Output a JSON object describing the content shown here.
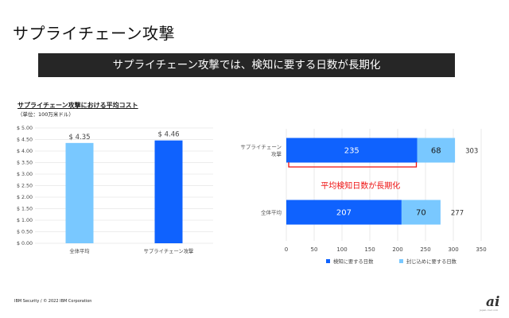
{
  "slide_title": "サプライチェーン攻撃",
  "banner": "サプライチェーン攻撃では、検知に要する日数が長期化",
  "footer": "IBM Security / © 2022 IBM Corporation",
  "logo": {
    "mark": "ai",
    "caption": "japan.cnet.com"
  },
  "colors": {
    "light_blue": "#79c8ff",
    "dark_blue": "#0f62fe",
    "highlight_red": "#ee1111",
    "banner_bg": "#262626"
  },
  "chart_data": [
    {
      "type": "bar",
      "title": "サプライチェーン攻撃における平均コスト",
      "subtitle": "（単位：100万米ドル）",
      "categories": [
        "全体平均",
        "サプライチェーン攻撃"
      ],
      "values": [
        4.35,
        4.46
      ],
      "value_labels": [
        "$ 4.35",
        "$ 4.46"
      ],
      "bar_colors": [
        "#79c8ff",
        "#0f62fe"
      ],
      "ylim": [
        0,
        5
      ],
      "yticks": [
        "$ 0.00",
        "$ 0.50",
        "$ 1.00",
        "$ 1.50",
        "$ 2.00",
        "$ 2.50",
        "$ 3.00",
        "$ 3.50",
        "$ 4.00",
        "$ 4.50",
        "$ 5.00"
      ],
      "grid": true
    },
    {
      "type": "bar",
      "orientation": "horizontal",
      "stacked": true,
      "categories": [
        [
          "サプライチェーン",
          "攻撃"
        ],
        [
          "全体平均"
        ]
      ],
      "series": [
        {
          "name": "検知に要する日数",
          "values": [
            235,
            207
          ],
          "color": "#0f62fe"
        },
        {
          "name": "封じ込めに要する日数",
          "values": [
            68,
            70
          ],
          "color": "#79c8ff"
        }
      ],
      "totals": [
        303,
        277
      ],
      "xlim": [
        0,
        350
      ],
      "xticks": [
        "0",
        "50",
        "100",
        "150",
        "200",
        "250",
        "300",
        "350"
      ],
      "annotation": "平均検知日数が長期化",
      "legend": "bottom",
      "grid": true
    }
  ]
}
